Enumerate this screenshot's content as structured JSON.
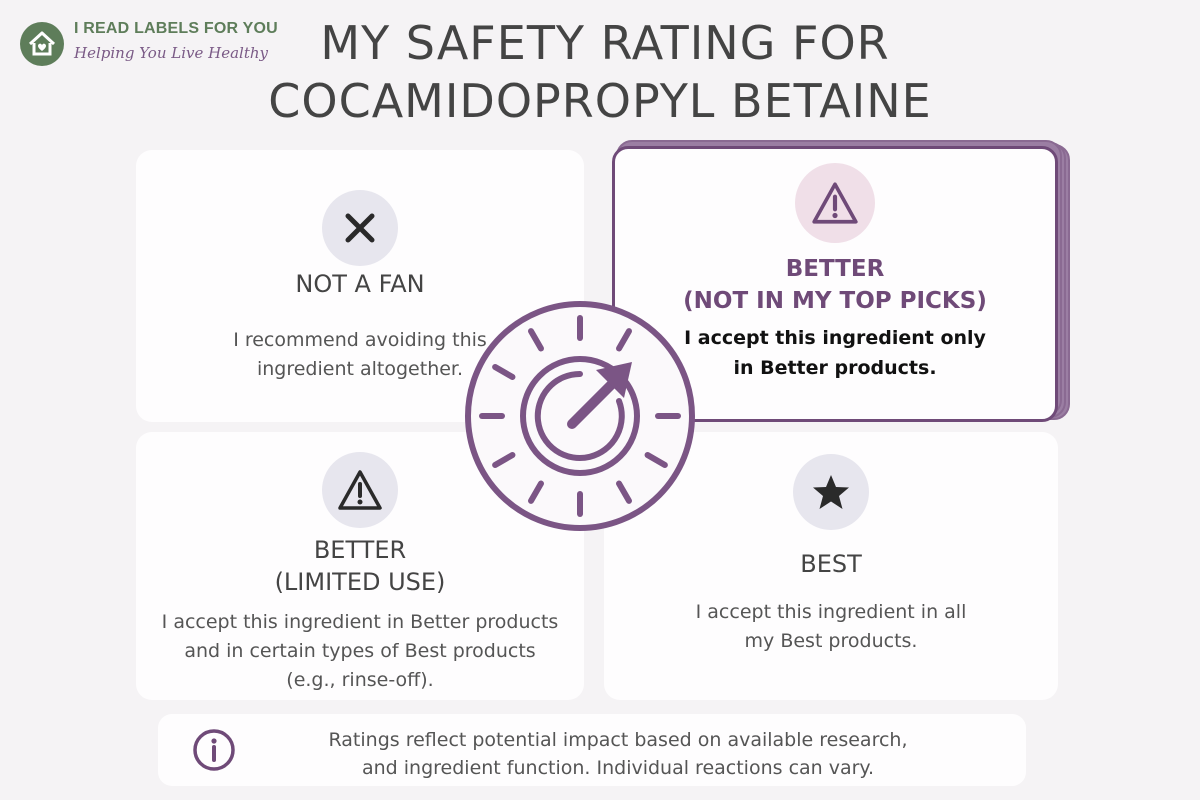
{
  "brand": {
    "name": "I READ LABELS FOR YOU",
    "tagline": "Helping You Live Healthy"
  },
  "title": {
    "line1": "MY SAFETY RATING FOR",
    "line2": "COCAMIDOPROPYL BETAINE"
  },
  "ratings": [
    {
      "icon": "x-icon",
      "heading": [
        "NOT A FAN"
      ],
      "body": [
        "I recommend avoiding this",
        "ingredient altogether."
      ]
    },
    {
      "icon": "warning-icon",
      "selected": true,
      "heading": [
        "BETTER",
        "(NOT IN MY TOP PICKS)"
      ],
      "body": [
        "I accept this ingredient only",
        "in Better products."
      ]
    },
    {
      "icon": "warning-icon",
      "heading": [
        "BETTER",
        "(LIMITED USE)"
      ],
      "body": [
        "I accept this ingredient in Better products",
        "and in certain types of Best products",
        "(e.g., rinse-off)."
      ]
    },
    {
      "icon": "star-icon",
      "heading": [
        "BEST"
      ],
      "body": [
        "I accept this ingredient in all",
        "my Best products."
      ]
    }
  ],
  "footer": {
    "icon": "info-icon",
    "line1": "Ratings reflect potential impact based on available research,",
    "line2": "and ingredient function. Individual reactions can vary."
  },
  "colors": {
    "accent": "#6f4a78",
    "brand_green": "#5e7d5a",
    "background": "#f5f3f5",
    "card": "#fefdfe"
  }
}
